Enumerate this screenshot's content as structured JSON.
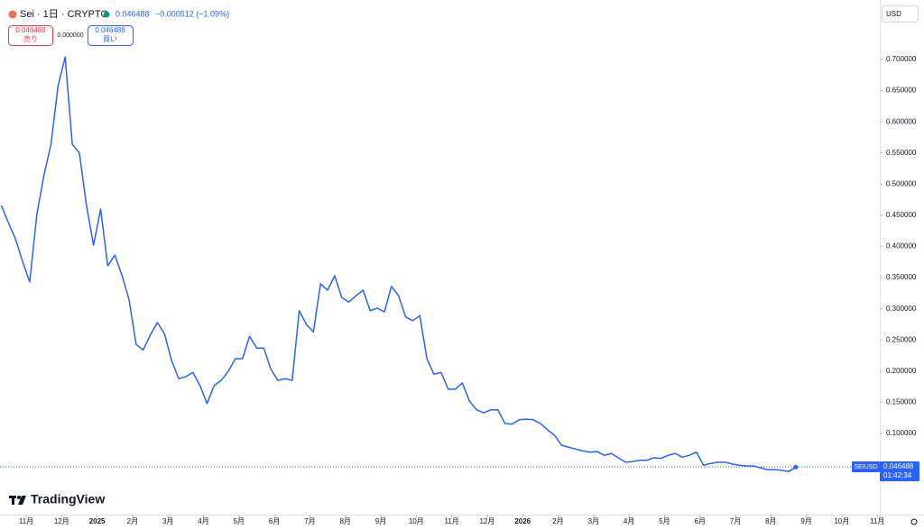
{
  "chart_data": {
    "type": "line",
    "title": "Sei · 1日 · CRYPTO",
    "price": "0.046488",
    "change": "−0.000512 (−1.09%)",
    "sell": {
      "price": "0.046488",
      "label": "売り"
    },
    "spread": "0.000000",
    "buy": {
      "price": "0.046488",
      "label": "買い"
    },
    "currency": "USD",
    "symbol": "SEIUSD",
    "countdown": "01:42:34",
    "brand": "TradingView",
    "last_price": 0.046488,
    "x": [
      -0.7,
      -0.5,
      -0.3,
      -0.1,
      0.1,
      0.3,
      0.5,
      0.7,
      0.9,
      1.1,
      1.3,
      1.5,
      1.7,
      1.9,
      2.1,
      2.3,
      2.5,
      2.7,
      2.9,
      3.1,
      3.3,
      3.5,
      3.7,
      3.9,
      4.1,
      4.3,
      4.5,
      4.7,
      4.9,
      5.1,
      5.3,
      5.5,
      5.7,
      5.9,
      6.1,
      6.3,
      6.5,
      6.7,
      6.9,
      7.1,
      7.3,
      7.5,
      7.7,
      7.9,
      8.1,
      8.3,
      8.5,
      8.7,
      8.9,
      9.1,
      9.3,
      9.5,
      9.7,
      9.9,
      10.1,
      10.3,
      10.5,
      10.7,
      10.9,
      11.1,
      11.3,
      11.5,
      11.7,
      11.9,
      12.1,
      12.3,
      12.5,
      12.7,
      12.9,
      13.1,
      13.3,
      13.5,
      13.7,
      13.9,
      14.1,
      14.3,
      14.5,
      14.7,
      14.9,
      15.1,
      15.3,
      15.5,
      15.7,
      15.9,
      16.1,
      16.3,
      16.5,
      16.7,
      16.9,
      17.1,
      17.3,
      17.5,
      17.7,
      17.9,
      18.1,
      18.3,
      18.5,
      18.7,
      18.9,
      19.1,
      19.3,
      19.5,
      19.7,
      19.9,
      20.1,
      20.3,
      20.5,
      20.7,
      20.9,
      21.1,
      21.3,
      21.5,
      21.7
    ],
    "series": [
      {
        "color": "#2962ff",
        "values": [
          0.466,
          0.438,
          0.412,
          0.376,
          0.343,
          0.451,
          0.514,
          0.564,
          0.658,
          0.704,
          0.564,
          0.55,
          0.466,
          0.402,
          0.46,
          0.369,
          0.386,
          0.354,
          0.315,
          0.243,
          0.234,
          0.258,
          0.278,
          0.26,
          0.217,
          0.188,
          0.191,
          0.198,
          0.177,
          0.148,
          0.177,
          0.185,
          0.2,
          0.22,
          0.22,
          0.256,
          0.237,
          0.237,
          0.203,
          0.185,
          0.188,
          0.185,
          0.297,
          0.275,
          0.263,
          0.34,
          0.33,
          0.353,
          0.318,
          0.311,
          0.321,
          0.33,
          0.297,
          0.301,
          0.295,
          0.336,
          0.321,
          0.287,
          0.281,
          0.289,
          0.22,
          0.195,
          0.198,
          0.171,
          0.171,
          0.181,
          0.152,
          0.138,
          0.133,
          0.138,
          0.138,
          0.116,
          0.115,
          0.122,
          0.123,
          0.122,
          0.116,
          0.106,
          0.097,
          0.081,
          0.078,
          0.075,
          0.072,
          0.07,
          0.071,
          0.065,
          0.068,
          0.061,
          0.054,
          0.055,
          0.057,
          0.057,
          0.061,
          0.06,
          0.065,
          0.068,
          0.062,
          0.065,
          0.07,
          0.049,
          0.052,
          0.054,
          0.054,
          0.051,
          0.049,
          0.048,
          0.048,
          0.045,
          0.042,
          0.042,
          0.041,
          0.039,
          0.046
        ]
      }
    ],
    "xlim": [
      -0.738,
      24.07
    ],
    "xticks": [
      {
        "value": 0,
        "label": "11月"
      },
      {
        "value": 1,
        "label": "12月"
      },
      {
        "value": 2,
        "label": "2025"
      },
      {
        "value": 3,
        "label": "2月"
      },
      {
        "value": 4,
        "label": "3月"
      },
      {
        "value": 5,
        "label": "4月"
      },
      {
        "value": 6,
        "label": "5月"
      },
      {
        "value": 7,
        "label": "6月"
      },
      {
        "value": 8,
        "label": "7月"
      },
      {
        "value": 9,
        "label": "8月"
      },
      {
        "value": 10,
        "label": "9月"
      },
      {
        "value": 11,
        "label": "10月"
      },
      {
        "value": 12,
        "label": "11月"
      },
      {
        "value": 13,
        "label": "12月"
      },
      {
        "value": 14,
        "label": "2026"
      },
      {
        "value": 15,
        "label": "2月"
      },
      {
        "value": 16,
        "label": "3月"
      },
      {
        "value": 17,
        "label": "4月"
      },
      {
        "value": 18,
        "label": "5月"
      },
      {
        "value": 19,
        "label": "6月"
      },
      {
        "value": 20,
        "label": "7月"
      },
      {
        "value": 21,
        "label": "8月"
      },
      {
        "value": 22,
        "label": "9月"
      },
      {
        "value": 23,
        "label": "10月"
      },
      {
        "value": 24,
        "label": "11月"
      }
    ],
    "ylim": [
      -0.0301,
      0.7954
    ],
    "yticks": [
      {
        "value": 0.1,
        "label": "0.100000"
      },
      {
        "value": 0.15,
        "label": "0.150000"
      },
      {
        "value": 0.2,
        "label": "0.200000"
      },
      {
        "value": 0.25,
        "label": "0.250000"
      },
      {
        "value": 0.3,
        "label": "0.300000"
      },
      {
        "value": 0.35,
        "label": "0.350000"
      },
      {
        "value": 0.4,
        "label": "0.400000"
      },
      {
        "value": 0.45,
        "label": "0.450000"
      },
      {
        "value": 0.5,
        "label": "0.500000"
      },
      {
        "value": 0.55,
        "label": "0.550000"
      },
      {
        "value": 0.6,
        "label": "0.600000"
      },
      {
        "value": 0.65,
        "label": "0.650000"
      },
      {
        "value": 0.7,
        "label": "0.700000"
      }
    ],
    "grid": false
  }
}
